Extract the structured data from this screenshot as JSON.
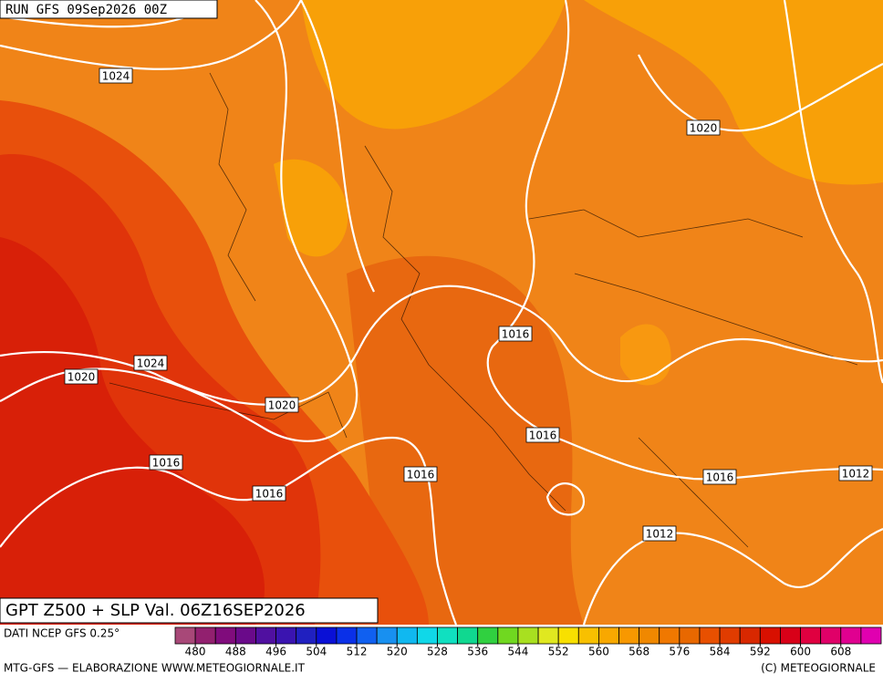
{
  "header": {
    "run": "RUN GFS 09Sep2026 00Z"
  },
  "map": {
    "title": "GPT Z500 + SLP Val. 06Z16SEP2026",
    "isobar_labels": [
      1024,
      1020,
      1016,
      1024,
      1020,
      1020,
      1016,
      1016,
      1016,
      1016,
      1012,
      1016,
      1012
    ]
  },
  "legend": {
    "source": "DATI NCEP GFS 0.25°",
    "colors": [
      "#a84878",
      "#92206f",
      "#800c7c",
      "#6a0a8a",
      "#5010a0",
      "#3a14b0",
      "#2020c0",
      "#0a10d6",
      "#0a30e8",
      "#1060f0",
      "#1890f0",
      "#10b8f0",
      "#10d8e8",
      "#10e0c0",
      "#10d890",
      "#30d040",
      "#70d820",
      "#a8e020",
      "#e0e820",
      "#f8e000",
      "#f8c000",
      "#f8a800",
      "#f89800",
      "#f08800",
      "#f07800",
      "#e86800",
      "#e85000",
      "#e03c00",
      "#d82800",
      "#d81000",
      "#d80018",
      "#e00040",
      "#e00068",
      "#e00090",
      "#e000b0"
    ],
    "ticks": [
      480,
      488,
      496,
      504,
      512,
      520,
      528,
      536,
      544,
      552,
      560,
      568,
      576,
      584,
      592,
      600,
      608
    ]
  },
  "footer": {
    "left": "MTG-GFS — ELABORAZIONE WWW.METEOGIORNALE.IT",
    "right": "(C) METEOGIORNALE"
  }
}
